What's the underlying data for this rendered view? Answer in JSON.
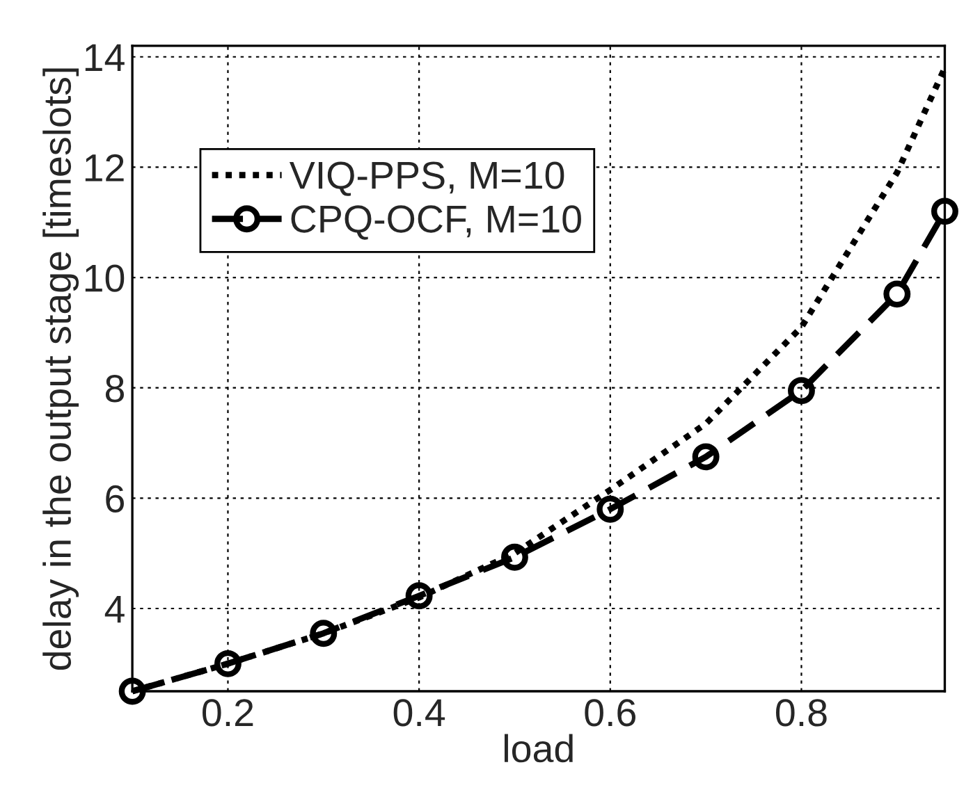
{
  "chart_data": {
    "type": "line",
    "xlabel": "load",
    "ylabel": "delay in the output stage [timeslots]",
    "x": [
      0.1,
      0.2,
      0.3,
      0.4,
      0.5,
      0.6,
      0.7,
      0.8,
      0.9,
      0.95
    ],
    "series": [
      {
        "name": "VIQ-PPS, M=10",
        "color": "#000000",
        "marker": "none",
        "line_style": "dotted",
        "values": [
          2.5,
          3.0,
          3.55,
          4.2,
          5.0,
          6.15,
          7.35,
          9.1,
          11.9,
          13.8
        ]
      },
      {
        "name": "CPQ-OCF, M=10",
        "color": "#000000",
        "marker": "circle",
        "line_style": "dashed",
        "values": [
          2.5,
          3.0,
          3.55,
          4.23,
          4.93,
          5.8,
          6.75,
          7.95,
          9.7,
          11.2
        ]
      }
    ],
    "xlim": [
      0.1,
      0.95
    ],
    "xticks": [
      0.2,
      0.4,
      0.6,
      0.8
    ],
    "ylim": [
      2.5,
      14.2
    ],
    "yticks": [
      4,
      6,
      8,
      10,
      12,
      14
    ],
    "grid": true,
    "legend": "top left"
  }
}
